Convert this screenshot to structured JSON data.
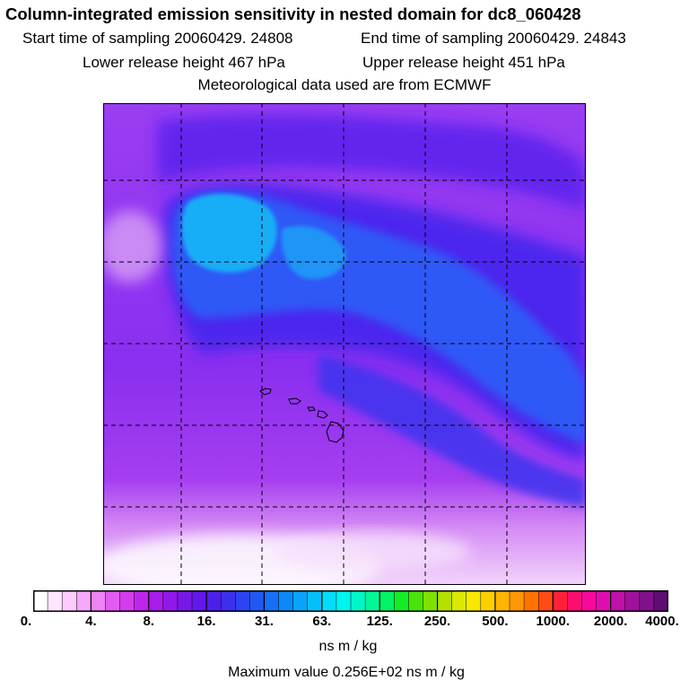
{
  "header": {
    "title": "Column-integrated emission sensitivity in nested domain for dc8_060428",
    "start_time": "Start time of sampling 20060429. 24808",
    "end_time": "End time of sampling 20060429. 24843",
    "lower_release": "Lower release height  467 hPa",
    "upper_release": "Upper release height  451 hPa",
    "met_data": "Meteorological data used are from ECMWF"
  },
  "colorbar": {
    "tick_labels": [
      "0.",
      "4.",
      "8.",
      "16.",
      "31.",
      "63.",
      "125.",
      "250.",
      "500.",
      "1000.",
      "2000.",
      "4000."
    ],
    "colors": [
      "#ffffff",
      "#fde6fe",
      "#fbccfc",
      "#f6a8fa",
      "#ee82f6",
      "#e35cf2",
      "#d43cee",
      "#c024ec",
      "#a91ceb",
      "#9018ea",
      "#7818e8",
      "#6218e8",
      "#4c20ea",
      "#3c30ee",
      "#2c44f2",
      "#2058f4",
      "#1670f6",
      "#0c88f8",
      "#06a4fa",
      "#04c0fa",
      "#00dcfa",
      "#00f4f0",
      "#00f8c8",
      "#00f898",
      "#00f464",
      "#14ec28",
      "#48e40c",
      "#80e000",
      "#b4e000",
      "#dce800",
      "#f8e800",
      "#ffd000",
      "#ffb400",
      "#ff9800",
      "#ff7400",
      "#ff4c14",
      "#ff2038",
      "#ff0c70",
      "#f8089c",
      "#e00cb0",
      "#c010a8",
      "#a0109c",
      "#80108c",
      "#600c74"
    ],
    "units": "ns m / kg"
  },
  "max_value": "Maximum value  0.256E+02 ns m / kg",
  "map": {
    "background_color": "#8a2ff0",
    "grid_lines": "dashed",
    "region": "Central North Pacific, Hawaiian Islands",
    "field_colors": {
      "low": "#e2a6f6",
      "mid": "#6a24ee",
      "high": "#2f5cf7",
      "peak": "#18b8f8"
    }
  }
}
